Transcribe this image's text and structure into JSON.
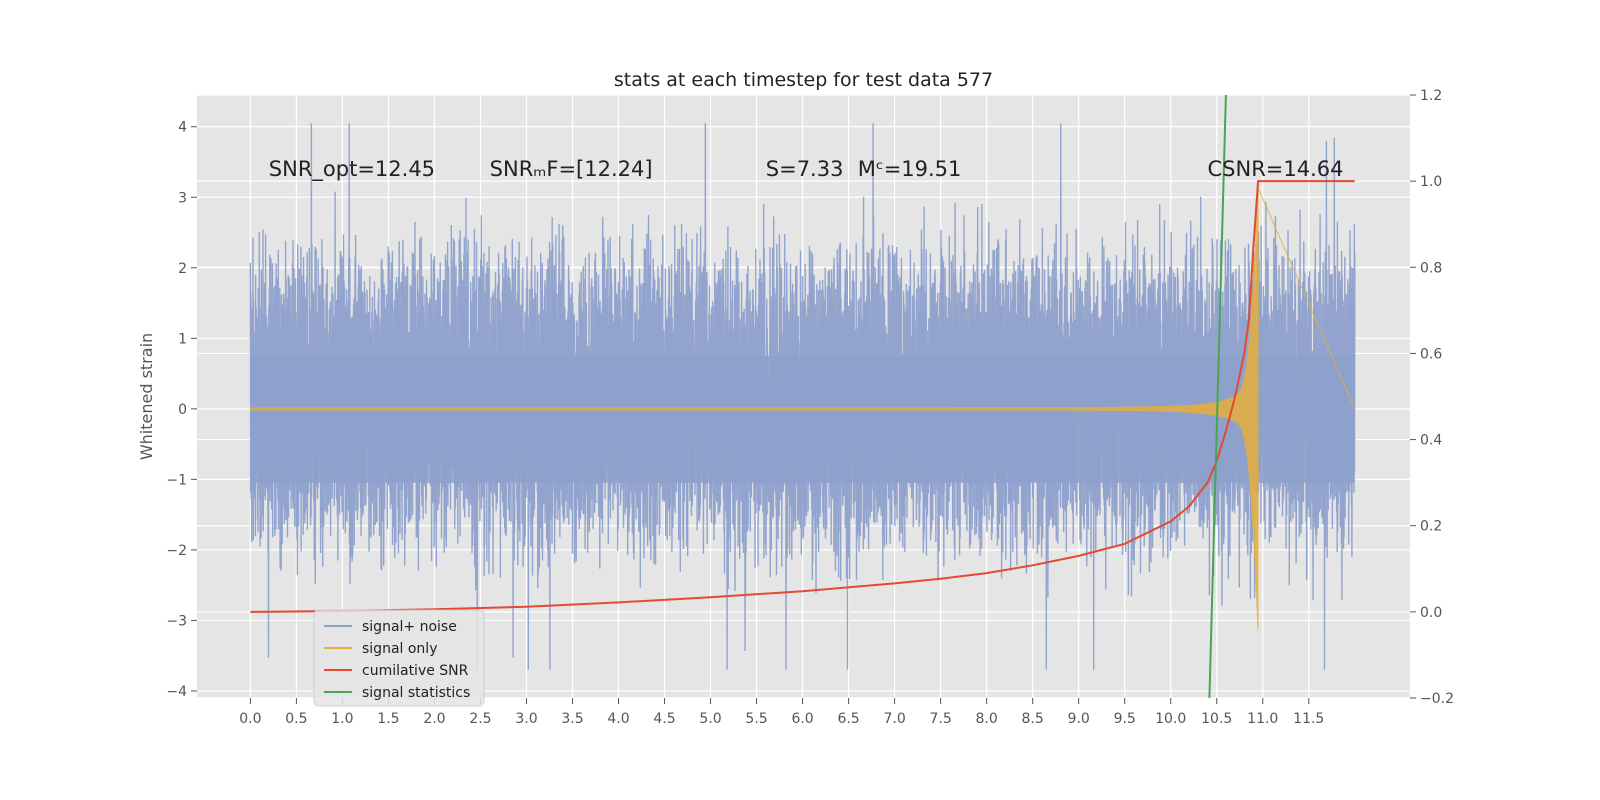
{
  "chart_data": {
    "type": "line",
    "title": "stats at each timestep for test data 577",
    "ylabel": "Whitened strain",
    "ylabel_right": "",
    "xlim": [
      -0.58,
      12.6
    ],
    "ylim": [
      -4.1,
      4.45
    ],
    "ylim_right": [
      -0.2,
      1.2
    ],
    "x_ticks": [
      "0.0",
      "0.5",
      "1.0",
      "1.5",
      "2.0",
      "2.5",
      "3.0",
      "3.5",
      "4.0",
      "4.5",
      "5.0",
      "5.5",
      "6.0",
      "6.5",
      "7.0",
      "7.5",
      "8.0",
      "8.5",
      "9.0",
      "9.5",
      "10.0",
      "10.5",
      "11.0",
      "11.5"
    ],
    "y_ticks": [
      -4,
      -3,
      -2,
      -1,
      0,
      1,
      2,
      3,
      4
    ],
    "y_ticks_right": [
      "−0.2",
      "0.0",
      "0.2",
      "0.4",
      "0.6",
      "0.8",
      "1.0",
      "1.2"
    ],
    "grid": true,
    "legend_position": "lower-left",
    "annotations": [
      {
        "text": "SNR_opt=12.45",
        "x": 0.2,
        "y": 3.3
      },
      {
        "text": "SNRₘF=[12.24]",
        "x": 2.6,
        "y": 3.3
      },
      {
        "text": "S=7.33",
        "x": 5.6,
        "y": 3.3
      },
      {
        "text": "Mᶜ=19.51",
        "x": 6.6,
        "y": 3.3
      },
      {
        "text": "CSNR=14.64",
        "x": 10.4,
        "y": 3.3
      }
    ],
    "series": [
      {
        "name": "signal+ noise",
        "color": "#8da0cb",
        "x_range": [
          0,
          12
        ],
        "envelope": {
          "typical_max": 1.9,
          "typical_min": -1.6,
          "peak_max": 4.05,
          "peak_min": -3.7
        }
      },
      {
        "name": "signal only",
        "color": "#e5ae38",
        "x_range": [
          0,
          10.95
        ],
        "envelope": {
          "start_amplitude": 0.02,
          "end_amplitude": 3.2,
          "merger_time": 10.95
        }
      },
      {
        "name": "cumilative SNR",
        "color": "#e24a33",
        "axis": "right",
        "x": [
          0,
          1,
          2,
          3,
          4,
          5,
          6,
          7,
          7.5,
          8,
          8.5,
          9,
          9.5,
          10,
          10.2,
          10.4,
          10.5,
          10.6,
          10.7,
          10.8,
          10.85,
          10.9,
          10.95,
          12
        ],
        "y": [
          0.0,
          0.002,
          0.006,
          0.012,
          0.022,
          0.034,
          0.048,
          0.066,
          0.077,
          0.09,
          0.108,
          0.13,
          0.158,
          0.21,
          0.245,
          0.3,
          0.35,
          0.42,
          0.5,
          0.6,
          0.68,
          0.85,
          1.0,
          1.0
        ]
      },
      {
        "name": "signal statistics",
        "color": "#4aa454",
        "axis": "right",
        "x": [
          10.42,
          10.6
        ],
        "y": [
          -0.2,
          1.2
        ]
      }
    ]
  }
}
